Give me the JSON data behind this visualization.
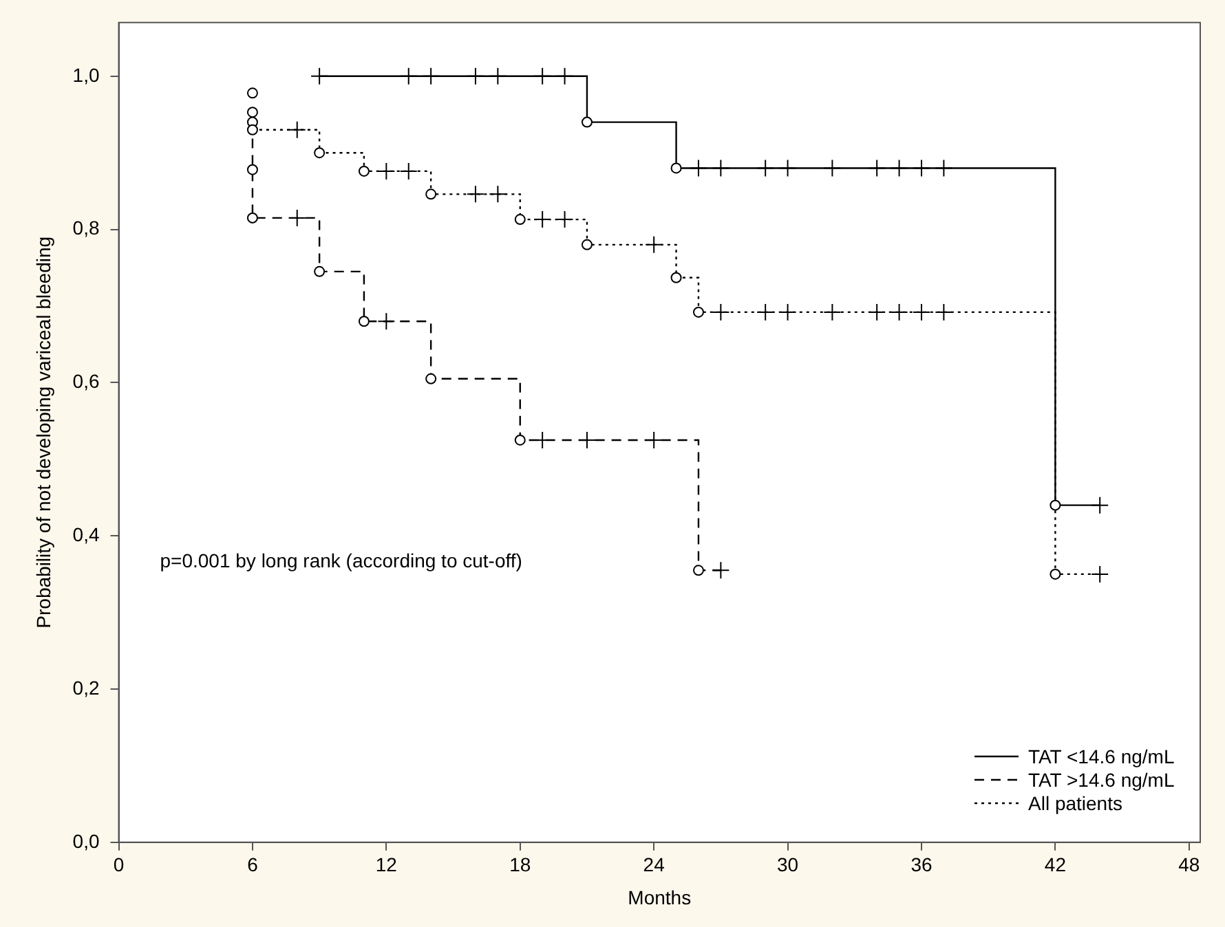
{
  "chart_data": {
    "type": "step",
    "xlabel": "Months",
    "ylabel": "Probability of not developing variceal bleeding",
    "annotations": [
      "p=0.001 by long rank (according to cut-off)"
    ],
    "xlim": [
      0,
      48.5
    ],
    "xticks": [
      0,
      6,
      12,
      18,
      24,
      30,
      36,
      42,
      48
    ],
    "ylim": [
      0,
      1.07
    ],
    "yticks": [
      {
        "value": 0,
        "label": "0,0"
      },
      {
        "value": 0.2,
        "label": "0,2"
      },
      {
        "value": 0.4,
        "label": "0,4"
      },
      {
        "value": 0.6,
        "label": "0,6"
      },
      {
        "value": 0.8,
        "label": "0,8"
      },
      {
        "value": 1,
        "label": "1,0"
      }
    ],
    "grid": false,
    "legend": "bottom right",
    "series": [
      {
        "name": "TAT <14.6 ng/mL",
        "color": "#000000",
        "line_style": "solid",
        "marker": "none",
        "x": [
          9,
          21,
          25,
          42,
          44
        ],
        "values": [
          1.0,
          0.94,
          0.88,
          0.44,
          0.44
        ]
      },
      {
        "name": "TAT >14.6 ng/mL",
        "color": "#000000",
        "line_style": "dashed",
        "marker": "none",
        "x": [
          6,
          6,
          9,
          11,
          14,
          18,
          26,
          27
        ],
        "values": [
          0.94,
          0.815,
          0.745,
          0.68,
          0.605,
          0.525,
          0.355,
          0.355
        ]
      },
      {
        "name": "All patients",
        "color": "#000000",
        "line_style": "dotted",
        "marker": "none",
        "x": [
          6,
          9,
          11,
          14,
          18,
          21,
          25,
          26,
          42,
          44
        ],
        "values": [
          0.93,
          0.9,
          0.876,
          0.846,
          0.813,
          0.78,
          0.737,
          0.692,
          0.35,
          0.35
        ]
      },
      {
        "type": "scatter",
        "color": "#000000",
        "marker": "cross",
        "x": [
          9,
          13,
          14,
          16,
          17,
          19,
          20,
          26,
          27,
          29,
          30,
          32,
          34,
          35,
          36,
          37,
          44,
          8,
          12,
          19,
          21,
          24,
          27,
          8,
          12,
          13,
          16,
          17,
          19,
          20,
          24,
          27,
          29,
          30,
          32,
          34,
          35,
          36,
          37,
          44
        ],
        "values": [
          1,
          1,
          1,
          1,
          1,
          1,
          1,
          0.88,
          0.88,
          0.88,
          0.88,
          0.88,
          0.88,
          0.88,
          0.88,
          0.88,
          0.44,
          0.815,
          0.68,
          0.525,
          0.525,
          0.525,
          0.355,
          0.93,
          0.876,
          0.876,
          0.846,
          0.846,
          0.813,
          0.813,
          0.78,
          0.692,
          0.692,
          0.692,
          0.692,
          0.692,
          0.692,
          0.692,
          0.692,
          0.35
        ]
      },
      {
        "type": "scatter",
        "color": "#000000",
        "marker": "circle",
        "x": [
          21,
          25,
          42,
          6,
          6,
          6,
          9,
          11,
          14,
          18,
          26,
          6,
          6,
          6,
          9,
          11,
          14,
          18,
          21,
          25,
          26,
          42
        ],
        "values": [
          0.94,
          0.88,
          0.44,
          0.94,
          0.878,
          0.815,
          0.745,
          0.68,
          0.605,
          0.525,
          0.355,
          0.978,
          0.953,
          0.93,
          0.9,
          0.876,
          0.846,
          0.813,
          0.78,
          0.737,
          0.692,
          0.35
        ]
      }
    ]
  }
}
